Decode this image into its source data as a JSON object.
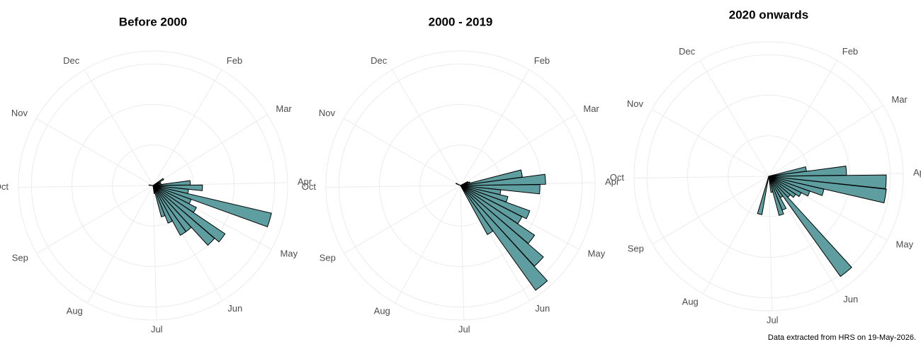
{
  "chart_data": [
    {
      "type": "polar-bar",
      "title": "Before 2000",
      "color": "#5f9ea0",
      "x": [
        60,
        74,
        88,
        95,
        102,
        109,
        116,
        123,
        130,
        137,
        144,
        151,
        158,
        165,
        172,
        280
      ],
      "values": [
        1.5,
        1,
        4.6,
        6.1,
        4.4,
        15,
        5,
        6,
        10.7,
        10,
        7,
        7,
        5,
        4,
        1,
        0.5
      ],
      "xlim": [
        1,
        366
      ],
      "xticks": [
        {
          "value": 32,
          "label": "Feb"
        },
        {
          "value": 60,
          "label": "Mar"
        },
        {
          "value": 91,
          "label": "Apr"
        },
        {
          "value": 121,
          "label": "May"
        },
        {
          "value": 152,
          "label": "Jun"
        },
        {
          "value": 182,
          "label": "Jul"
        },
        {
          "value": 213,
          "label": "Aug"
        },
        {
          "value": 244,
          "label": "Sep"
        },
        {
          "value": 274,
          "label": "Oct"
        },
        {
          "value": 305,
          "label": "Nov"
        },
        {
          "value": 335,
          "label": "Dec"
        }
      ],
      "ylim": [
        0,
        16.6
      ],
      "yticks": [
        0,
        5,
        10,
        15
      ]
    },
    {
      "type": "polar-bar",
      "title": "2000 - 2019",
      "color": "#5f9ea0",
      "x": [
        67,
        74,
        81,
        88,
        95,
        102,
        109,
        116,
        123,
        130,
        137,
        144,
        151,
        300
      ],
      "values": [
        1,
        1.2,
        7.7,
        10.5,
        9.8,
        5,
        6,
        9.1,
        8.5,
        11,
        13.5,
        15.9,
        6.9,
        0.6
      ],
      "xlim": [
        1,
        366
      ],
      "xticks": [
        {
          "value": 32,
          "label": "Feb"
        },
        {
          "value": 60,
          "label": "Mar"
        },
        {
          "value": 91,
          "label": "Apr"
        },
        {
          "value": 121,
          "label": "May"
        },
        {
          "value": 152,
          "label": "Jun"
        },
        {
          "value": 182,
          "label": "Jul"
        },
        {
          "value": 213,
          "label": "Aug"
        },
        {
          "value": 244,
          "label": "Sep"
        },
        {
          "value": 274,
          "label": "Oct"
        },
        {
          "value": 305,
          "label": "Nov"
        },
        {
          "value": 335,
          "label": "Dec"
        }
      ],
      "ylim": [
        0,
        16.6
      ],
      "yticks": [
        0,
        5,
        10,
        15
      ]
    },
    {
      "type": "polar-bar",
      "title": "2020 onwards",
      "color": "#5f9ea0",
      "x": [
        81,
        88,
        95,
        102,
        109,
        116,
        123,
        130,
        137,
        144,
        151,
        158,
        165,
        172,
        197
      ],
      "values": [
        4.7,
        9.6,
        14.5,
        14.6,
        7,
        5.4,
        4.5,
        4,
        3.5,
        15.2,
        3,
        4.5,
        5,
        2,
        4.8
      ],
      "xlim": [
        1,
        366
      ],
      "xticks": [
        {
          "value": 32,
          "label": "Feb"
        },
        {
          "value": 60,
          "label": "Mar"
        },
        {
          "value": 91,
          "label": "Apr"
        },
        {
          "value": 121,
          "label": "May"
        },
        {
          "value": 152,
          "label": "Jun"
        },
        {
          "value": 182,
          "label": "Jul"
        },
        {
          "value": 213,
          "label": "Aug"
        },
        {
          "value": 244,
          "label": "Sep"
        },
        {
          "value": 274,
          "label": "Oct"
        },
        {
          "value": 305,
          "label": "Nov"
        },
        {
          "value": 335,
          "label": "Dec"
        }
      ],
      "ylim": [
        0,
        16.6
      ],
      "yticks": [
        0,
        5,
        10,
        15
      ]
    }
  ],
  "caption": "Data extracted from HRS on 19-May-2026."
}
